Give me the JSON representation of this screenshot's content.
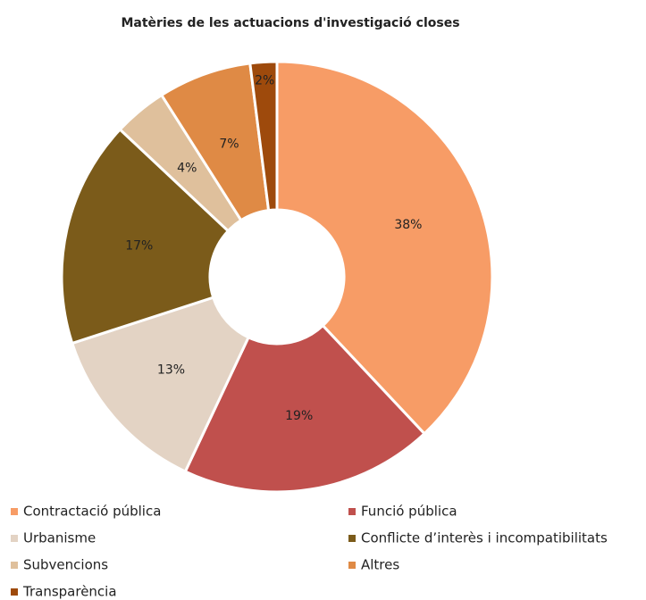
{
  "chart_data": {
    "type": "pie",
    "title": "Matèries de les actuacions d'investigació closes",
    "categories": [
      "Contractació pública",
      "Funció pública",
      "Urbanisme",
      "Conflicte d’interès i incompatibilitats",
      "Subvencions",
      "Altres",
      "Transparència"
    ],
    "values": [
      38,
      19,
      13,
      17,
      4,
      7,
      2
    ],
    "value_labels": [
      "38%",
      "19%",
      "13%",
      "17%",
      "4%",
      "7%",
      "2%"
    ],
    "colors": [
      "#f79c66",
      "#c0504d",
      "#e3d3c4",
      "#7b5b1a",
      "#dfc09c",
      "#df8a45",
      "#9e4a0c"
    ]
  }
}
